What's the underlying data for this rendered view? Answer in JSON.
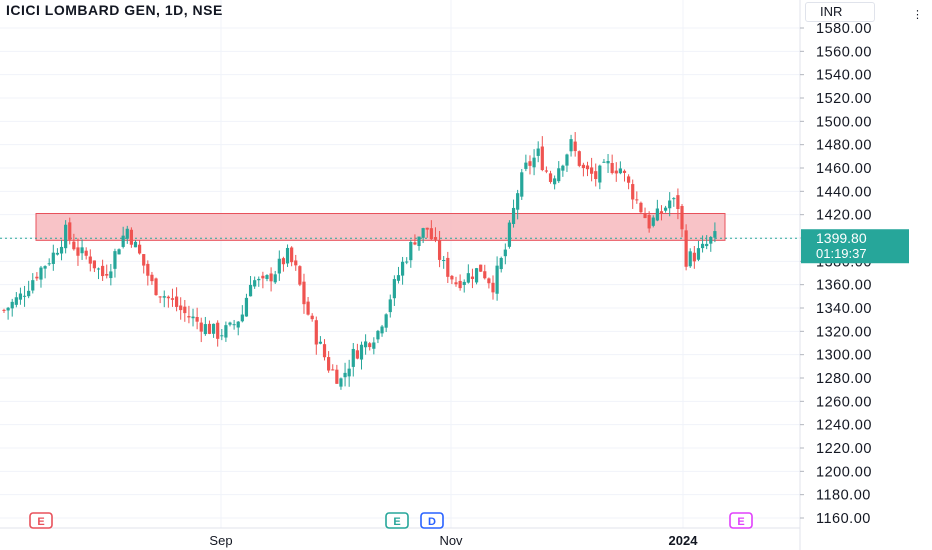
{
  "title": "ICICI LOMBARD GEN, 1D, NSE",
  "currency": "INR",
  "last_price": "1399.80",
  "countdown": "01:19:37",
  "colors": {
    "up": "#26a69a",
    "down": "#ef5350",
    "zone_fill": "#f7b9bd",
    "zone_stroke": "#e8515b",
    "grid": "#f0f3fa",
    "axis_text": "#131722"
  },
  "event_markers": [
    {
      "label": "E",
      "type": "earnings",
      "color": "#e8515b"
    },
    {
      "label": "E",
      "type": "earnings",
      "color": "#26a69a"
    },
    {
      "label": "D",
      "type": "dividend",
      "color": "#2962ff"
    },
    {
      "label": "E",
      "type": "earnings",
      "color": "#e040fb"
    }
  ],
  "chart_data": {
    "type": "candlestick",
    "title": "ICICI LOMBARD GEN, 1D, NSE",
    "ylabel": "INR",
    "ylim": [
      1155,
      1585
    ],
    "y_ticks": [
      "1580.00",
      "1560.00",
      "1540.00",
      "1520.00",
      "1500.00",
      "1480.00",
      "1460.00",
      "1440.00",
      "1420.00",
      "1400.00",
      "1380.00",
      "1360.00",
      "1340.00",
      "1320.00",
      "1300.00",
      "1280.00",
      "1260.00",
      "1240.00",
      "1220.00",
      "1200.00",
      "1180.00",
      "1160.00"
    ],
    "x_ticks": [
      "Sep",
      "Nov",
      "2024"
    ],
    "grid": true,
    "last_price": 1399.8,
    "resistance_zone": {
      "low": 1398,
      "high": 1421
    },
    "close_path": [
      [
        0,
        1338
      ],
      [
        4,
        1350
      ],
      [
        8,
        1370
      ],
      [
        12,
        1386
      ],
      [
        15,
        1405
      ],
      [
        18,
        1388
      ],
      [
        21,
        1382
      ],
      [
        24,
        1368
      ],
      [
        26,
        1378
      ],
      [
        28,
        1395
      ],
      [
        30,
        1408
      ],
      [
        33,
        1385
      ],
      [
        36,
        1360
      ],
      [
        40,
        1348
      ],
      [
        44,
        1335
      ],
      [
        48,
        1326
      ],
      [
        52,
        1318
      ],
      [
        55,
        1322
      ],
      [
        58,
        1335
      ],
      [
        60,
        1365
      ],
      [
        63,
        1360
      ],
      [
        66,
        1372
      ],
      [
        69,
        1385
      ],
      [
        71,
        1372
      ],
      [
        73,
        1345
      ],
      [
        76,
        1315
      ],
      [
        79,
        1290
      ],
      [
        82,
        1278
      ],
      [
        85,
        1300
      ],
      [
        88,
        1310
      ],
      [
        91,
        1320
      ],
      [
        94,
        1350
      ],
      [
        97,
        1378
      ],
      [
        100,
        1400
      ],
      [
        103,
        1408
      ],
      [
        105,
        1392
      ],
      [
        107,
        1376
      ],
      [
        110,
        1362
      ],
      [
        113,
        1368
      ],
      [
        116,
        1374
      ],
      [
        119,
        1360
      ],
      [
        122,
        1390
      ],
      [
        125,
        1440
      ],
      [
        127,
        1460
      ],
      [
        130,
        1472
      ],
      [
        133,
        1450
      ],
      [
        136,
        1468
      ],
      [
        138,
        1480
      ],
      [
        141,
        1458
      ],
      [
        144,
        1452
      ],
      [
        147,
        1462
      ],
      [
        150,
        1460
      ],
      [
        152,
        1445
      ],
      [
        155,
        1425
      ],
      [
        157,
        1412
      ],
      [
        160,
        1422
      ],
      [
        162,
        1432
      ],
      [
        164,
        1428
      ],
      [
        166,
        1382
      ],
      [
        168,
        1385
      ],
      [
        170,
        1390
      ],
      [
        172,
        1398
      ],
      [
        173,
        1400
      ]
    ]
  }
}
